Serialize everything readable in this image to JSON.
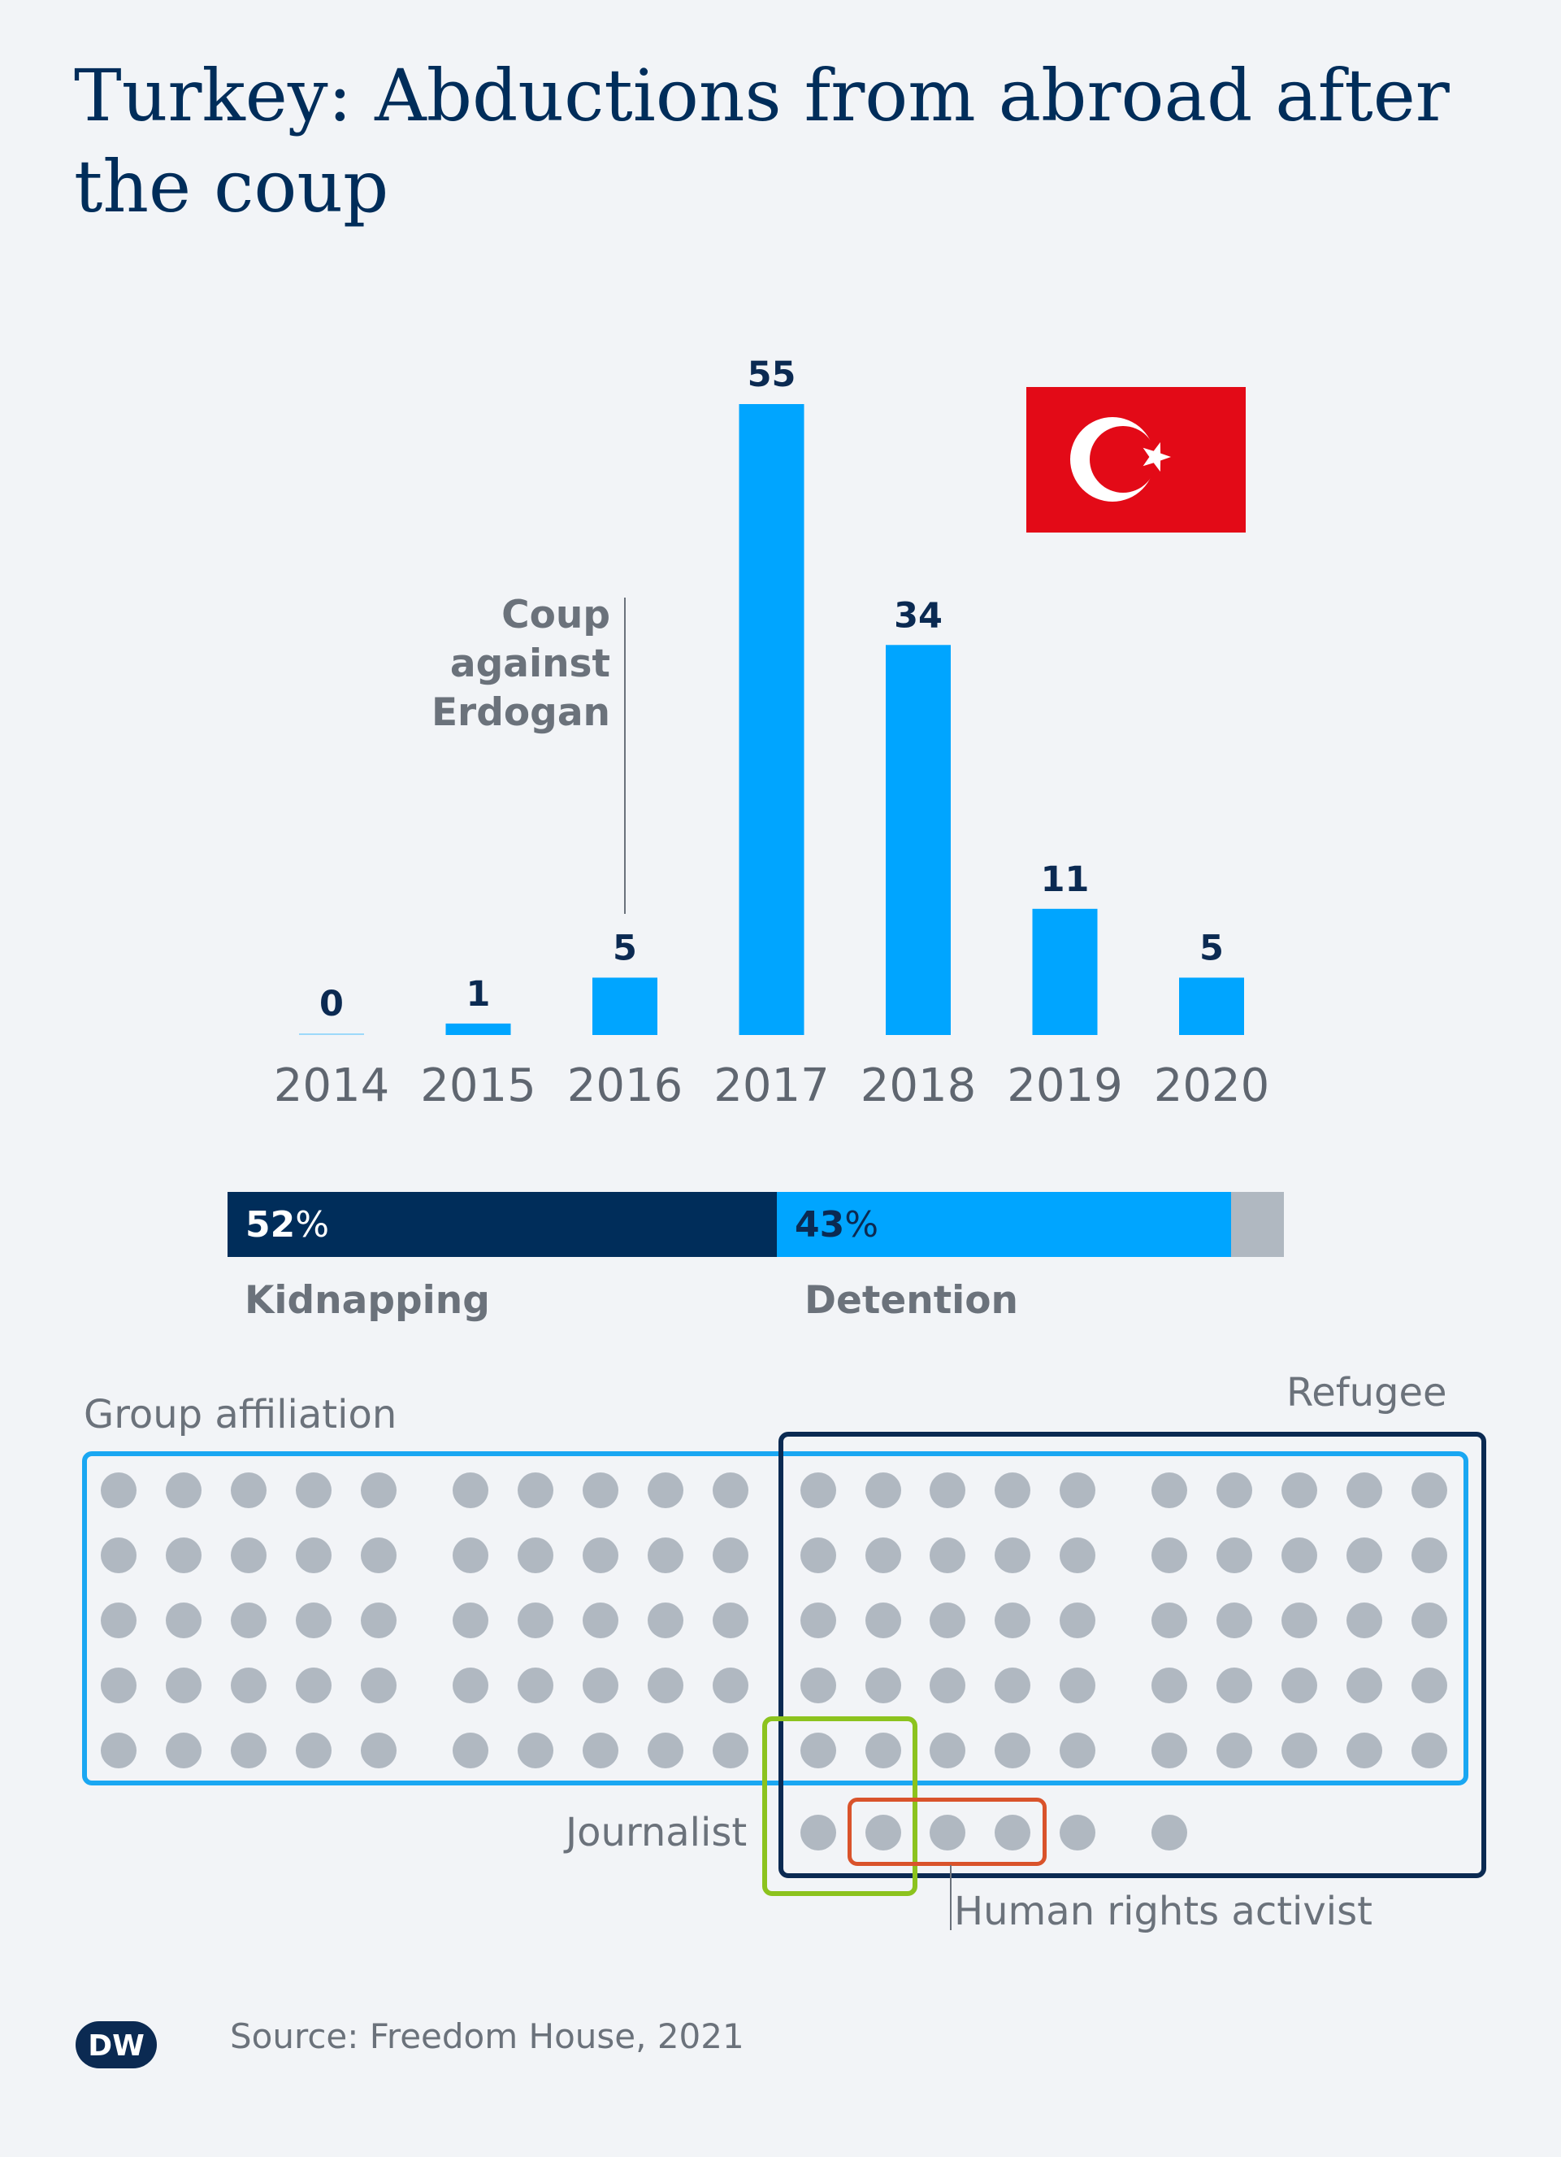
{
  "chart_data": {
    "type": "bar",
    "title": "Turkey: Abductions from abroad after the coup",
    "categories": [
      "2014",
      "2015",
      "2016",
      "2017",
      "2018",
      "2019",
      "2020"
    ],
    "values": [
      0,
      1,
      5,
      55,
      34,
      11,
      5
    ],
    "annotation": {
      "lines": [
        "Coup",
        "against",
        "Erdogan"
      ],
      "category": "2016"
    },
    "ylim": [
      0,
      55
    ],
    "grid": false,
    "colors": {
      "bar": "#00a5ff",
      "value_label": "#0b2a52",
      "tick": "#5f6670"
    }
  },
  "method_split": {
    "segments": [
      {
        "name": "Kidnapping",
        "value": 52,
        "value_text": "52",
        "unit": "%",
        "color": "#002d5a",
        "text_color": "#ffffff"
      },
      {
        "name": "Detention",
        "value": 43,
        "value_text": "43",
        "unit": "%",
        "color": "#00a5ff",
        "text_color": "#0b2a52"
      },
      {
        "name": "",
        "value": 5,
        "value_text": "",
        "unit": "",
        "color": "#b0b8c1",
        "text_color": "#0b2a52"
      }
    ]
  },
  "groups": {
    "group_affiliation": "Group affiliation",
    "refugee": "Refugee",
    "journalist": "Journalist",
    "human_rights": "Human rights activist",
    "colors": {
      "group": "#1aa7f2",
      "refugee": "#0b2a52",
      "journalist": "#8cc31e",
      "human_rights": "#d9532b",
      "dot": "#b0b8c1"
    }
  },
  "footer": {
    "source": "Source: Freedom House, 2021",
    "logo_text": "DW"
  },
  "icons": {
    "flag": "turkey-flag-icon",
    "logo": "dw-logo-icon"
  }
}
